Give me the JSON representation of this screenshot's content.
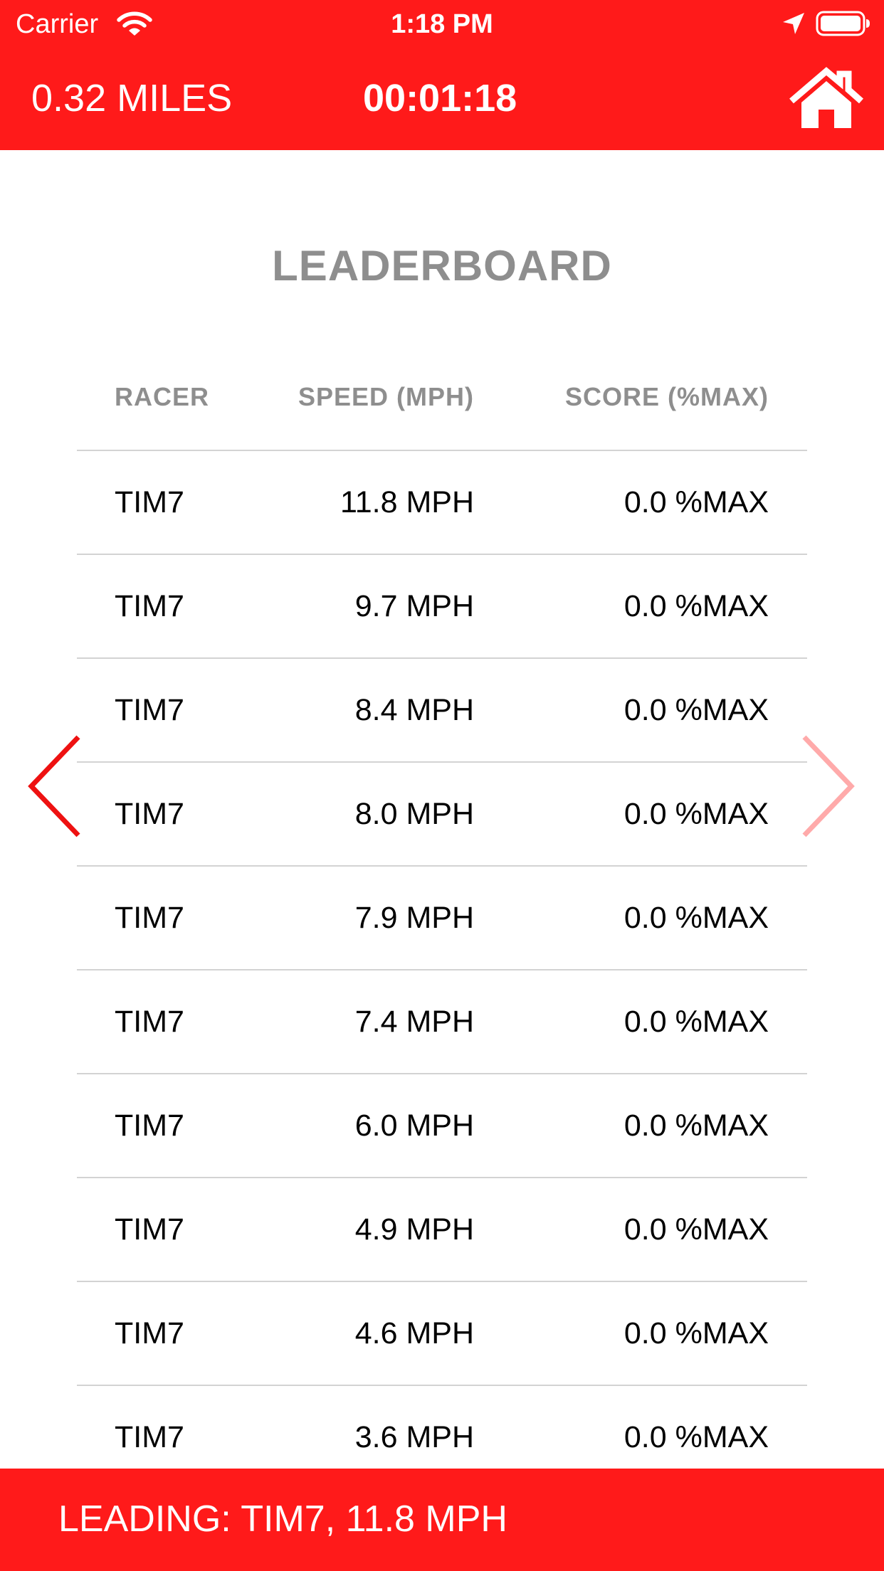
{
  "colors": {
    "accent": "#ff1a1a",
    "arrow_active": "#ee1111",
    "arrow_inactive": "#ffaaaa"
  },
  "status_bar": {
    "carrier": "Carrier",
    "time": "1:18 PM",
    "icons": [
      "wifi-icon",
      "location-icon",
      "battery-icon"
    ]
  },
  "header": {
    "distance": "0.32 MILES",
    "elapsed": "00:01:18",
    "home_icon": "home-icon"
  },
  "leaderboard": {
    "title": "LEADERBOARD",
    "columns": [
      "RACER",
      "SPEED (MPH)",
      "SCORE (%MAX)"
    ],
    "rows": [
      {
        "racer": "TIM7",
        "speed": "11.8 MPH",
        "score": "0.0 %MAX"
      },
      {
        "racer": "TIM7",
        "speed": "9.7 MPH",
        "score": "0.0 %MAX"
      },
      {
        "racer": "TIM7",
        "speed": "8.4 MPH",
        "score": "0.0 %MAX"
      },
      {
        "racer": "TIM7",
        "speed": "8.0 MPH",
        "score": "0.0 %MAX"
      },
      {
        "racer": "TIM7",
        "speed": "7.9 MPH",
        "score": "0.0 %MAX"
      },
      {
        "racer": "TIM7",
        "speed": "7.4 MPH",
        "score": "0.0 %MAX"
      },
      {
        "racer": "TIM7",
        "speed": "6.0 MPH",
        "score": "0.0 %MAX"
      },
      {
        "racer": "TIM7",
        "speed": "4.9 MPH",
        "score": "0.0 %MAX"
      },
      {
        "racer": "TIM7",
        "speed": "4.6 MPH",
        "score": "0.0 %MAX"
      },
      {
        "racer": "TIM7",
        "speed": "3.6 MPH",
        "score": "0.0 %MAX"
      }
    ]
  },
  "navigation": {
    "prev_icon": "chevron-left-icon",
    "next_icon": "chevron-right-icon"
  },
  "footer": {
    "leading": "LEADING: TIM7, 11.8 MPH"
  }
}
